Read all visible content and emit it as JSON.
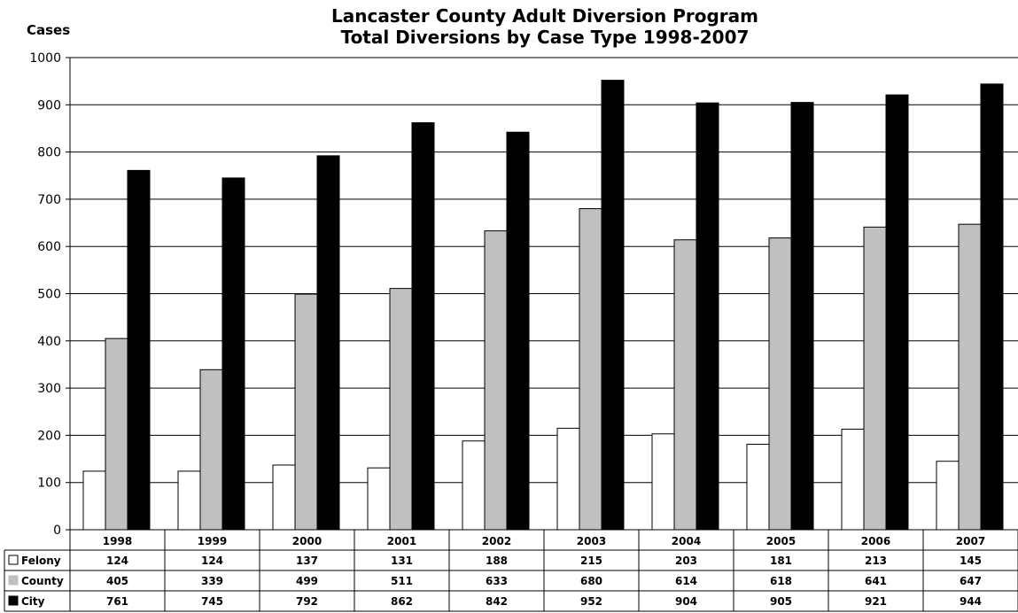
{
  "chart_data": {
    "type": "bar",
    "title_line1": "Lancaster County Adult Diversion Program",
    "title_line2": "Total Diversions by Case Type 1998-2007",
    "ylabel": "Cases",
    "xlabel": "",
    "ylim": [
      0,
      1000
    ],
    "yticks": [
      0,
      100,
      200,
      300,
      400,
      500,
      600,
      700,
      800,
      900,
      1000
    ],
    "grid": true,
    "legend": "data-table",
    "categories": [
      "1998",
      "1999",
      "2000",
      "2001",
      "2002",
      "2003",
      "2004",
      "2005",
      "2006",
      "2007"
    ],
    "series": [
      {
        "name": "Felony",
        "color": "#ffffff",
        "values": [
          124,
          124,
          137,
          131,
          188,
          215,
          203,
          181,
          213,
          145
        ]
      },
      {
        "name": "County",
        "color": "#c0c0c0",
        "values": [
          405,
          339,
          499,
          511,
          633,
          680,
          614,
          618,
          641,
          647
        ]
      },
      {
        "name": "City",
        "color": "#000000",
        "values": [
          761,
          745,
          792,
          862,
          842,
          952,
          904,
          905,
          921,
          944
        ]
      }
    ]
  }
}
